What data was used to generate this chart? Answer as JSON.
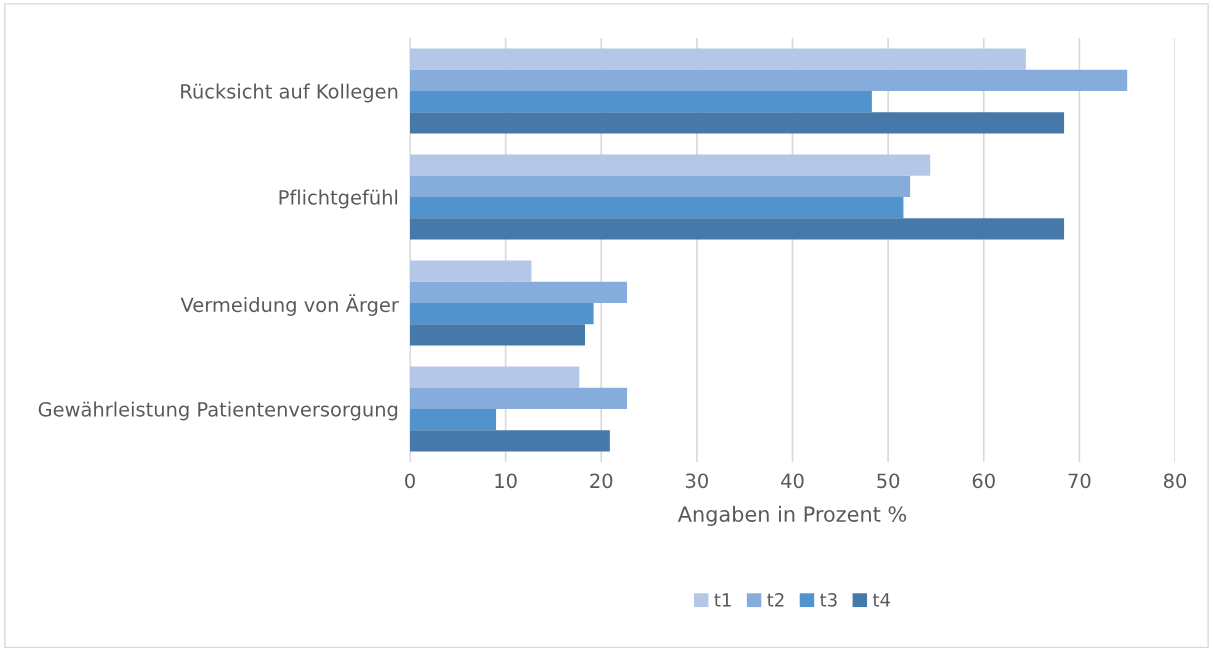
{
  "chart_data": {
    "type": "bar",
    "orientation": "horizontal",
    "categories": [
      "Rücksicht auf Kollegen",
      "Pflichtgefühl",
      "Vermeidung von Ärger",
      "Gewährleistung Patientenversorgung"
    ],
    "series": [
      {
        "name": "t1",
        "color": "#b4c7e7",
        "values": [
          64.4,
          54.4,
          12.7,
          17.7
        ]
      },
      {
        "name": "t2",
        "color": "#86acdc",
        "values": [
          75.0,
          52.3,
          22.7,
          22.7
        ]
      },
      {
        "name": "t3",
        "color": "#5193cd",
        "values": [
          48.3,
          51.6,
          19.2,
          9.0
        ]
      },
      {
        "name": "t4",
        "color": "#4679aa",
        "values": [
          68.4,
          68.4,
          18.3,
          20.9
        ]
      }
    ],
    "xlabel": "Angaben in Prozent %",
    "xlim": [
      0,
      80
    ],
    "xticks": [
      0,
      10,
      20,
      30,
      40,
      50,
      60,
      70,
      80
    ],
    "grid": "x",
    "legend": "bottom"
  }
}
